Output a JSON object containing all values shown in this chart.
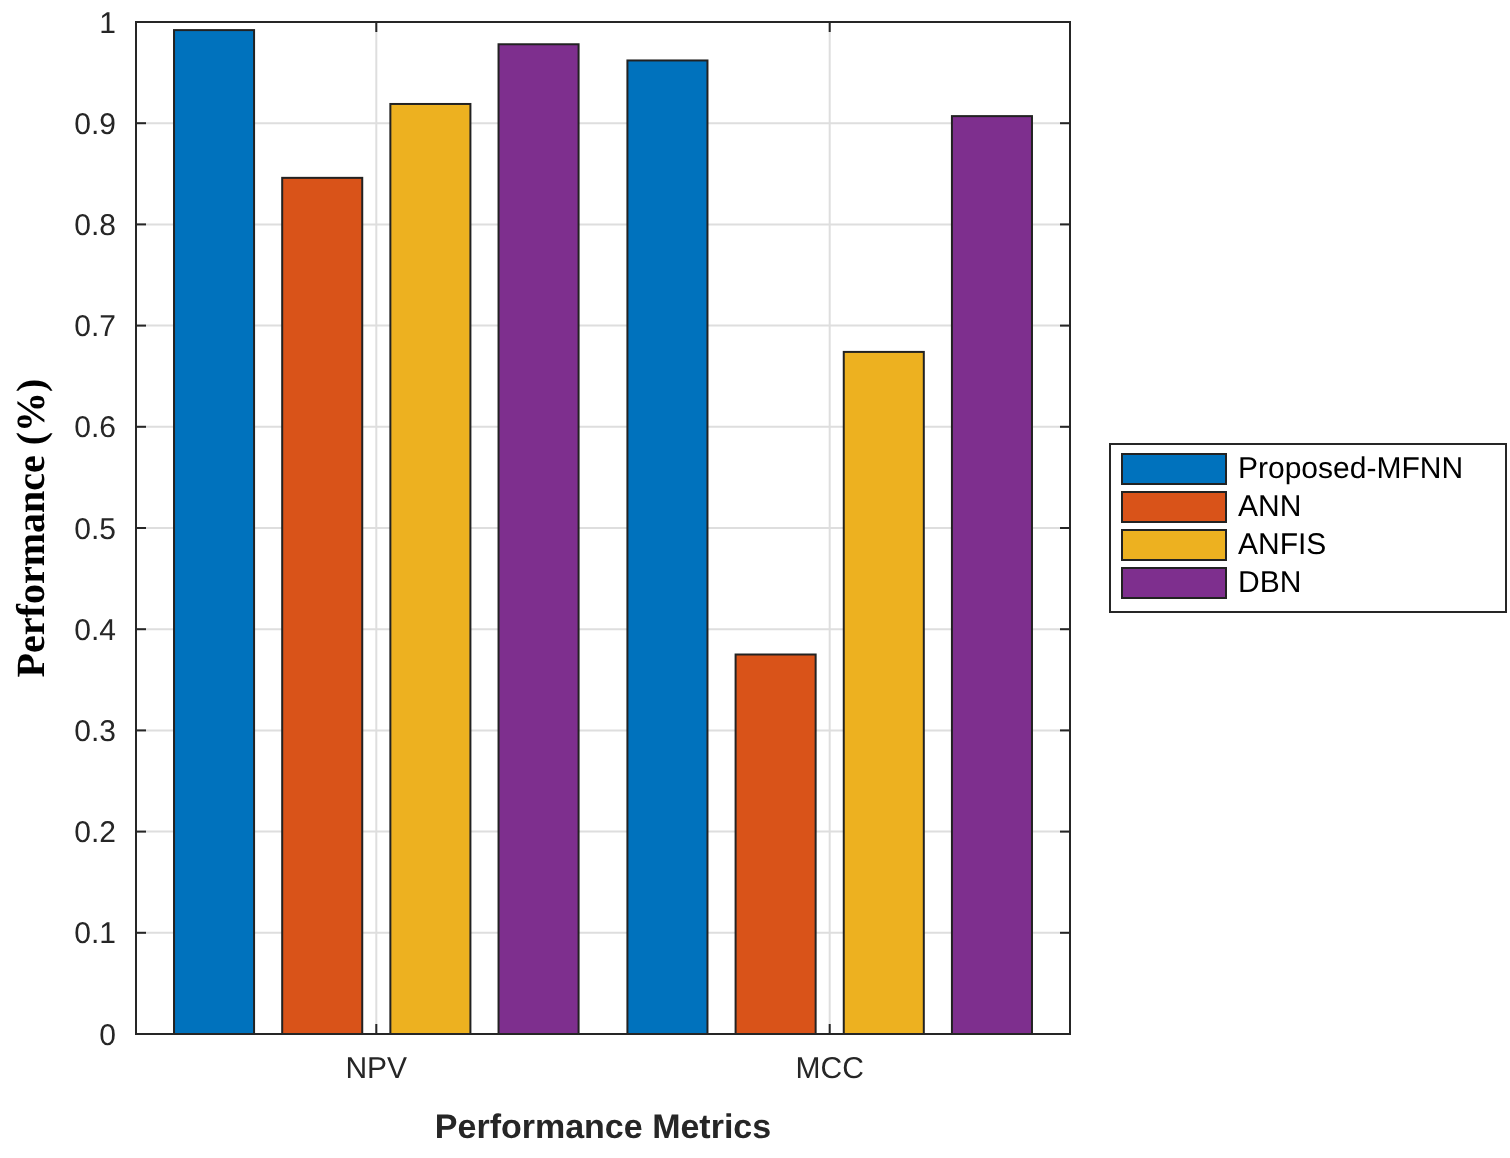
{
  "chart_data": {
    "type": "bar",
    "xlabel": "Performance Metrics",
    "ylabel": "Performance (%)",
    "categories": [
      "NPV",
      "MCC"
    ],
    "series": [
      {
        "name": "Proposed-MFNN",
        "color": "#0072bd",
        "values": [
          0.992,
          0.962
        ]
      },
      {
        "name": "ANN",
        "color": "#d95319",
        "values": [
          0.846,
          0.375
        ]
      },
      {
        "name": "ANFIS",
        "color": "#edb120",
        "values": [
          0.919,
          0.674
        ]
      },
      {
        "name": "DBN",
        "color": "#7e2f8e",
        "values": [
          0.978,
          0.907
        ]
      }
    ],
    "ylim": [
      0,
      1
    ],
    "yticks": [
      0,
      0.1,
      0.2,
      0.3,
      0.4,
      0.5,
      0.6,
      0.7,
      0.8,
      0.9,
      1
    ],
    "grid": true,
    "legend": "right"
  }
}
